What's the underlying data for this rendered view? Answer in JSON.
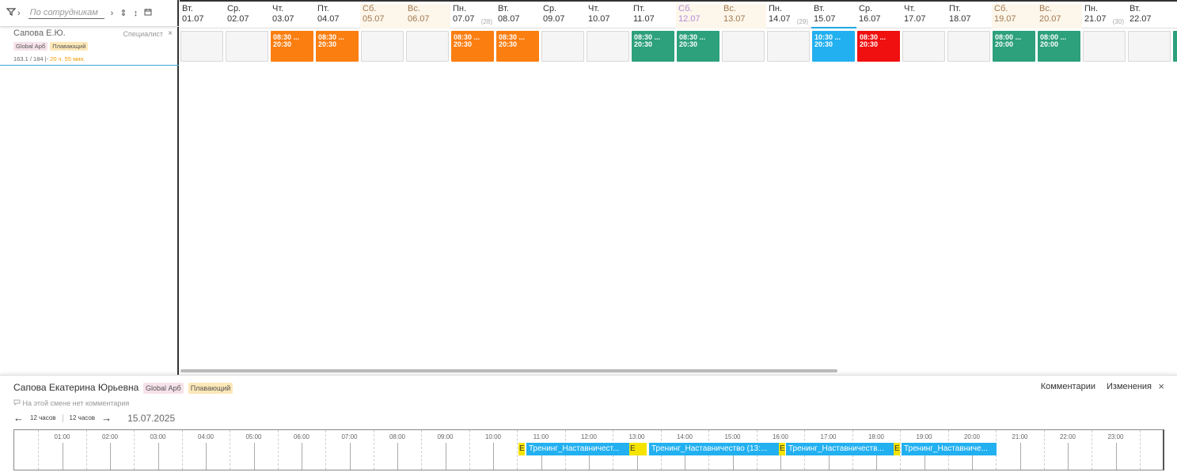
{
  "toolbar": {
    "filter_icon": "filter-icon",
    "search_placeholder": "По сотрудникам",
    "glyph_1": "›",
    "glyph_2": "⇕",
    "glyph_3": "↕",
    "calendar_icon": "calendar-icon"
  },
  "employee": {
    "name": "Сапова Е.Ю.",
    "role": "Специалист",
    "close": "×",
    "tags": [
      "Global Арб",
      "Плавающий"
    ],
    "hours": "163.1 / 184 |-",
    "hours_warn": "20 ч. 55 мин."
  },
  "days": [
    {
      "name": "Вт.",
      "date": "01.07",
      "kind": "work"
    },
    {
      "name": "Ср.",
      "date": "02.07",
      "kind": "work"
    },
    {
      "name": "Чт.",
      "date": "03.07",
      "kind": "work"
    },
    {
      "name": "Пт.",
      "date": "04.07",
      "kind": "work"
    },
    {
      "name": "Сб.",
      "date": "05.07",
      "kind": "weekend"
    },
    {
      "name": "Вс.",
      "date": "06.07",
      "kind": "weekend"
    },
    {
      "name": "Пн.",
      "date": "07.07",
      "kind": "work",
      "week": "(28)"
    },
    {
      "name": "Вт.",
      "date": "08.07",
      "kind": "work"
    },
    {
      "name": "Ср.",
      "date": "09.07",
      "kind": "work"
    },
    {
      "name": "Чт.",
      "date": "10.07",
      "kind": "work"
    },
    {
      "name": "Пт.",
      "date": "11.07",
      "kind": "work"
    },
    {
      "name": "Сб.",
      "date": "12.07",
      "kind": "holiday"
    },
    {
      "name": "Вс.",
      "date": "13.07",
      "kind": "weekend"
    },
    {
      "name": "Пн.",
      "date": "14.07",
      "kind": "work",
      "week": "(29)"
    },
    {
      "name": "Вт.",
      "date": "15.07",
      "kind": "today"
    },
    {
      "name": "Ср.",
      "date": "16.07",
      "kind": "work"
    },
    {
      "name": "Чт.",
      "date": "17.07",
      "kind": "work"
    },
    {
      "name": "Пт.",
      "date": "18.07",
      "kind": "work"
    },
    {
      "name": "Сб.",
      "date": "19.07",
      "kind": "weekend"
    },
    {
      "name": "Вс.",
      "date": "20.07",
      "kind": "weekend"
    },
    {
      "name": "Пн.",
      "date": "21.07",
      "kind": "work",
      "week": "(30)"
    },
    {
      "name": "Вт.",
      "date": "22.07",
      "kind": "work"
    }
  ],
  "shifts": [
    {
      "day": 2,
      "start": "08:30 ...",
      "end": "20:30",
      "color": "orange"
    },
    {
      "day": 3,
      "start": "08:30 ...",
      "end": "20:30",
      "color": "orange"
    },
    {
      "day": 6,
      "start": "08:30 ...",
      "end": "20:30",
      "color": "orange"
    },
    {
      "day": 7,
      "start": "08:30 ...",
      "end": "20:30",
      "color": "orange"
    },
    {
      "day": 10,
      "start": "08:30 ...",
      "end": "20:30",
      "color": "green"
    },
    {
      "day": 11,
      "start": "08:30 ...",
      "end": "20:30",
      "color": "green"
    },
    {
      "day": 14,
      "start": "10:30 ...",
      "end": "20:30",
      "color": "blue"
    },
    {
      "day": 15,
      "start": "08:30 ...",
      "end": "20:30",
      "color": "red"
    },
    {
      "day": 18,
      "start": "08:00 ...",
      "end": "20:00",
      "color": "green"
    },
    {
      "day": 19,
      "start": "08:00 ...",
      "end": "20:00",
      "color": "green"
    }
  ],
  "details": {
    "name": "Сапова Екатерина Юрьевна",
    "tags": [
      "Global Арб",
      "Плавающий"
    ],
    "comments_link": "Комментарии",
    "changes_link": "Изменения",
    "close": "×",
    "no_comment": "На этой смене нет комментария",
    "prev_arrow": "←",
    "prev_step": "12 часов",
    "next_step": "12 часов",
    "next_arrow": "→",
    "date": "15.07.2025",
    "hours": [
      "01:00",
      "02:00",
      "03:00",
      "04:00",
      "05:00",
      "06:00",
      "07:00",
      "08:00",
      "09:00",
      "10:00",
      "11:00",
      "12:00",
      "13:00",
      "14:00",
      "15:00",
      "16:00",
      "17:00",
      "18:00",
      "19:00",
      "20:00",
      "21:00",
      "22:00",
      "23:00"
    ],
    "events": [
      {
        "label": "Е",
        "color": "yellow"
      },
      {
        "label": "Тренинг_Наставничест...",
        "color": "blue"
      },
      {
        "label": "Е",
        "color": "yellow"
      },
      {
        "label": "Тренинг_Наставничество (13:...",
        "color": "blue"
      },
      {
        "label": "Е",
        "color": "yellow"
      },
      {
        "label": "Тренинг_Наставничеств...",
        "color": "blue"
      },
      {
        "label": "Е",
        "color": "yellow"
      },
      {
        "label": "Тренинг_Наставниче...",
        "color": "blue"
      }
    ]
  },
  "colors": {
    "orange": "#fb7e11",
    "green": "#2da07c",
    "blue": "#22b0f0",
    "red": "#f01010",
    "accent": "#1ea8e0"
  }
}
